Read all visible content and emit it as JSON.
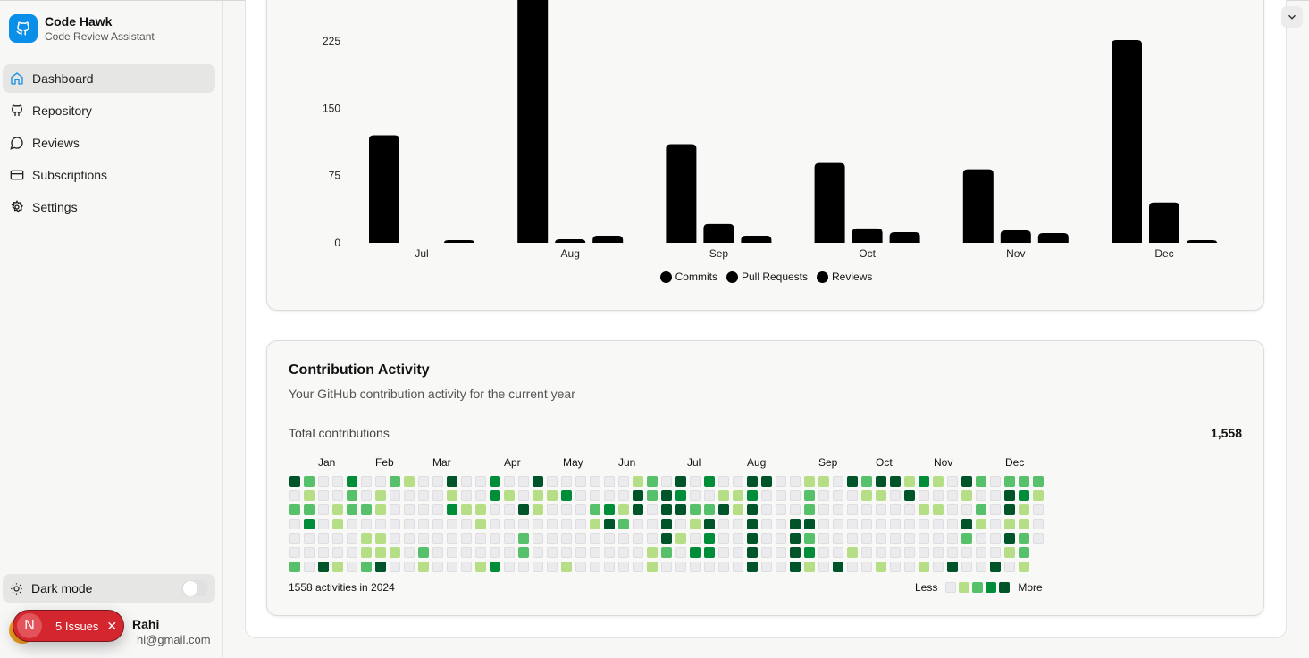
{
  "app": {
    "title": "Code Hawk",
    "subtitle": "Code Review Assistant"
  },
  "sidebar": {
    "items": [
      {
        "label": "Dashboard",
        "icon": "home-icon",
        "active": true
      },
      {
        "label": "Repository",
        "icon": "github-icon"
      },
      {
        "label": "Reviews",
        "icon": "message-circle-icon"
      },
      {
        "label": "Subscriptions",
        "icon": "credit-card-icon"
      },
      {
        "label": "Settings",
        "icon": "gear-icon"
      }
    ],
    "dark_mode": {
      "label": "Dark mode",
      "on": false
    },
    "user": {
      "name": "Rahi",
      "email": "hi@gmail.com"
    }
  },
  "issues_badge": {
    "letter": "N",
    "label": "5 Issues",
    "color": "#d4262e"
  },
  "chart_data": {
    "type": "bar",
    "categories": [
      "Jul",
      "Aug",
      "Sep",
      "Oct",
      "Nov",
      "Dec"
    ],
    "yticks": [
      0,
      75,
      150,
      225
    ],
    "series": [
      {
        "name": "Commits",
        "values": [
          120,
          290,
          110,
          89,
          82,
          226
        ],
        "color": "#000000"
      },
      {
        "name": "Pull Requests",
        "values": [
          0,
          4,
          21,
          16,
          14,
          45
        ],
        "color": "#000000"
      },
      {
        "name": "Reviews",
        "values": [
          3,
          8,
          8,
          12,
          11,
          3
        ],
        "color": "#000000"
      }
    ],
    "legend_position": "bottom",
    "grid": false
  },
  "contrib": {
    "title": "Contribution Activity",
    "subtitle": "Your GitHub contribution activity for the current year",
    "total_label": "Total contributions",
    "total_value": "1,558",
    "months": [
      "Jan",
      "Feb",
      "Mar",
      "Apr",
      "May",
      "Jun",
      "Jul",
      "Aug",
      "Sep",
      "Oct",
      "Nov",
      "Dec"
    ],
    "footer": "1558 activities in 2024",
    "less": "Less",
    "more": "More",
    "level_colors": [
      "#ebebee",
      "#b6de86",
      "#57c06a",
      "#008d3a",
      "#00542a"
    ],
    "rows": [
      "42003002100400300400000012040300440011042441310420222",
      "01002010000100310113000042430011300020001104000100431",
      "22012210000311004100023140442241400020000000110020410",
      "03010000000001000000014200401400400440000000000410110",
      "00000110000000002000000000410300400420000000000200420",
      "0000011102000000200000000120330040043001000000000012",
      "2041024001000130000100000100000040041040010010400401"
    ]
  }
}
